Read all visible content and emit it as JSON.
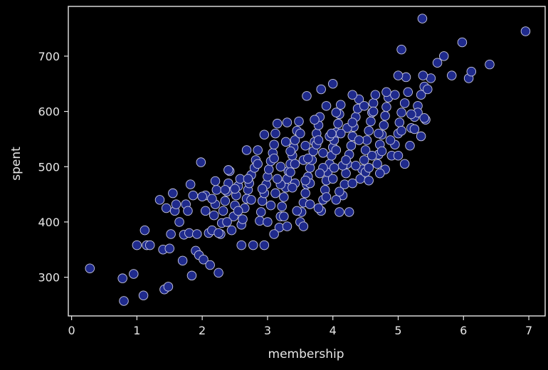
{
  "chart_data": {
    "type": "scatter",
    "xlabel": "membership",
    "ylabel": "spent",
    "xlim": [
      -0.05,
      7.25
    ],
    "ylim": [
      230,
      790
    ],
    "xticks": [
      0,
      1,
      2,
      3,
      4,
      5,
      6,
      7
    ],
    "yticks": [
      300,
      400,
      500,
      600,
      700
    ],
    "grid": false,
    "marker_color": "#1f2a8c",
    "marker_edge_color": "#c8c8e0",
    "background": "#000000",
    "points": [
      [
        0.28,
        316
      ],
      [
        0.78,
        298
      ],
      [
        0.8,
        257
      ],
      [
        0.95,
        306
      ],
      [
        1.0,
        358
      ],
      [
        1.1,
        267
      ],
      [
        1.12,
        385
      ],
      [
        1.15,
        358
      ],
      [
        1.2,
        358
      ],
      [
        1.35,
        440
      ],
      [
        1.4,
        350
      ],
      [
        1.42,
        278
      ],
      [
        1.45,
        425
      ],
      [
        1.48,
        283
      ],
      [
        1.5,
        352
      ],
      [
        1.52,
        378
      ],
      [
        1.55,
        452
      ],
      [
        1.58,
        420
      ],
      [
        1.6,
        432
      ],
      [
        1.65,
        400
      ],
      [
        1.7,
        330
      ],
      [
        1.72,
        377
      ],
      [
        1.75,
        432
      ],
      [
        1.78,
        420
      ],
      [
        1.8,
        380
      ],
      [
        1.82,
        468
      ],
      [
        1.84,
        303
      ],
      [
        1.86,
        448
      ],
      [
        1.9,
        348
      ],
      [
        1.92,
        378
      ],
      [
        1.95,
        340
      ],
      [
        1.98,
        508
      ],
      [
        2.02,
        332
      ],
      [
        2.05,
        448
      ],
      [
        2.1,
        380
      ],
      [
        2.12,
        322
      ],
      [
        2.15,
        385
      ],
      [
        2.18,
        412
      ],
      [
        2.2,
        432
      ],
      [
        2.22,
        458
      ],
      [
        2.25,
        308
      ],
      [
        2.28,
        378
      ],
      [
        2.3,
        398
      ],
      [
        2.32,
        420
      ],
      [
        2.35,
        438
      ],
      [
        2.38,
        455
      ],
      [
        2.4,
        470
      ],
      [
        2.42,
        492
      ],
      [
        2.45,
        385
      ],
      [
        2.48,
        410
      ],
      [
        2.5,
        430
      ],
      [
        2.52,
        448
      ],
      [
        2.55,
        465
      ],
      [
        2.58,
        478
      ],
      [
        2.6,
        395
      ],
      [
        2.62,
        405
      ],
      [
        2.65,
        425
      ],
      [
        2.68,
        442
      ],
      [
        2.7,
        458
      ],
      [
        2.72,
        470
      ],
      [
        2.75,
        485
      ],
      [
        2.78,
        358
      ],
      [
        2.8,
        498
      ],
      [
        2.82,
        512
      ],
      [
        2.85,
        530
      ],
      [
        2.88,
        402
      ],
      [
        2.9,
        418
      ],
      [
        2.92,
        438
      ],
      [
        2.95,
        452
      ],
      [
        2.98,
        468
      ],
      [
        3.0,
        482
      ],
      [
        3.02,
        495
      ],
      [
        3.05,
        510
      ],
      [
        3.08,
        525
      ],
      [
        3.1,
        540
      ],
      [
        3.12,
        560
      ],
      [
        3.15,
        578
      ],
      [
        3.18,
        390
      ],
      [
        3.2,
        410
      ],
      [
        3.22,
        428
      ],
      [
        3.25,
        445
      ],
      [
        3.28,
        462
      ],
      [
        3.3,
        478
      ],
      [
        3.32,
        492
      ],
      [
        3.35,
        505
      ],
      [
        3.38,
        520
      ],
      [
        3.4,
        535
      ],
      [
        3.42,
        548
      ],
      [
        3.45,
        565
      ],
      [
        3.48,
        582
      ],
      [
        3.5,
        400
      ],
      [
        3.52,
        418
      ],
      [
        3.55,
        435
      ],
      [
        3.58,
        452
      ],
      [
        3.6,
        468
      ],
      [
        3.62,
        482
      ],
      [
        3.65,
        498
      ],
      [
        3.68,
        512
      ],
      [
        3.7,
        528
      ],
      [
        3.72,
        545
      ],
      [
        3.75,
        560
      ],
      [
        3.78,
        575
      ],
      [
        3.8,
        590
      ],
      [
        3.82,
        420
      ],
      [
        3.85,
        440
      ],
      [
        3.88,
        458
      ],
      [
        3.9,
        475
      ],
      [
        3.92,
        490
      ],
      [
        3.95,
        505
      ],
      [
        3.98,
        520
      ],
      [
        4.0,
        535
      ],
      [
        4.02,
        548
      ],
      [
        4.05,
        562
      ],
      [
        4.08,
        578
      ],
      [
        4.1,
        595
      ],
      [
        4.12,
        612
      ],
      [
        4.15,
        448
      ],
      [
        4.18,
        468
      ],
      [
        4.2,
        488
      ],
      [
        4.22,
        505
      ],
      [
        4.25,
        522
      ],
      [
        4.28,
        538
      ],
      [
        4.3,
        555
      ],
      [
        4.32,
        572
      ],
      [
        4.35,
        590
      ],
      [
        4.38,
        605
      ],
      [
        4.4,
        622
      ],
      [
        4.42,
        478
      ],
      [
        4.45,
        495
      ],
      [
        4.48,
        512
      ],
      [
        4.5,
        530
      ],
      [
        4.52,
        548
      ],
      [
        4.55,
        565
      ],
      [
        4.58,
        582
      ],
      [
        4.6,
        598
      ],
      [
        4.62,
        615
      ],
      [
        4.65,
        630
      ],
      [
        4.68,
        505
      ],
      [
        4.7,
        522
      ],
      [
        4.72,
        540
      ],
      [
        4.75,
        558
      ],
      [
        4.78,
        575
      ],
      [
        4.8,
        592
      ],
      [
        4.82,
        608
      ],
      [
        4.85,
        625
      ],
      [
        4.9,
        520
      ],
      [
        4.95,
        540
      ],
      [
        5.0,
        560
      ],
      [
        5.02,
        580
      ],
      [
        5.05,
        598
      ],
      [
        5.1,
        615
      ],
      [
        5.15,
        635
      ],
      [
        5.2,
        570
      ],
      [
        5.25,
        590
      ],
      [
        5.3,
        610
      ],
      [
        5.35,
        630
      ],
      [
        5.4,
        645
      ],
      [
        5.5,
        660
      ],
      [
        5.6,
        688
      ],
      [
        5.7,
        700
      ],
      [
        5.82,
        665
      ],
      [
        5.98,
        725
      ],
      [
        6.08,
        660
      ],
      [
        6.12,
        672
      ],
      [
        6.4,
        685
      ],
      [
        6.95,
        745
      ],
      [
        5.37,
        768
      ],
      [
        5.05,
        712
      ],
      [
        4.3,
        630
      ],
      [
        4.0,
        650
      ],
      [
        3.82,
        640
      ],
      [
        3.6,
        628
      ],
      [
        3.3,
        580
      ],
      [
        2.95,
        558
      ],
      [
        2.68,
        530
      ],
      [
        2.4,
        494
      ],
      [
        2.2,
        474
      ],
      [
        2.0,
        446
      ],
      [
        2.25,
        380
      ],
      [
        2.6,
        358
      ],
      [
        2.95,
        358
      ],
      [
        3.1,
        378
      ],
      [
        3.3,
        392
      ],
      [
        3.55,
        392
      ],
      [
        3.78,
        425
      ],
      [
        4.1,
        418
      ],
      [
        4.25,
        418
      ],
      [
        4.05,
        440
      ],
      [
        4.5,
        490
      ],
      [
        4.8,
        495
      ],
      [
        5.1,
        505
      ],
      [
        5.18,
        538
      ],
      [
        5.35,
        555
      ],
      [
        5.42,
        585
      ],
      [
        5.3,
        598
      ],
      [
        5.45,
        640
      ],
      [
        5.2,
        595
      ],
      [
        5.0,
        520
      ],
      [
        4.75,
        528
      ],
      [
        4.6,
        520
      ],
      [
        4.4,
        548
      ],
      [
        4.22,
        570
      ],
      [
        4.05,
        598
      ],
      [
        3.9,
        610
      ],
      [
        3.72,
        585
      ],
      [
        3.5,
        560
      ],
      [
        3.28,
        545
      ],
      [
        3.1,
        515
      ],
      [
        2.85,
        505
      ],
      [
        2.7,
        478
      ],
      [
        2.5,
        460
      ],
      [
        2.35,
        458
      ],
      [
        2.15,
        442
      ],
      [
        2.05,
        420
      ],
      [
        3.05,
        430
      ],
      [
        3.2,
        468
      ],
      [
        3.42,
        470
      ],
      [
        3.65,
        470
      ],
      [
        3.85,
        498
      ],
      [
        4.0,
        478
      ],
      [
        4.15,
        502
      ],
      [
        4.35,
        502
      ],
      [
        4.55,
        498
      ],
      [
        4.7,
        560
      ],
      [
        4.88,
        548
      ],
      [
        5.05,
        565
      ],
      [
        5.25,
        568
      ],
      [
        5.4,
        588
      ],
      [
        5.38,
        665
      ],
      [
        5.12,
        662
      ],
      [
        5.0,
        665
      ],
      [
        4.95,
        630
      ],
      [
        4.82,
        635
      ],
      [
        4.62,
        600
      ],
      [
        4.48,
        610
      ],
      [
        4.3,
        580
      ],
      [
        4.12,
        560
      ],
      [
        3.95,
        555
      ],
      [
        3.75,
        540
      ],
      [
        3.55,
        512
      ],
      [
        3.35,
        490
      ],
      [
        3.15,
        478
      ],
      [
        2.92,
        460
      ],
      [
        2.75,
        440
      ],
      [
        2.55,
        420
      ],
      [
        2.38,
        400
      ],
      [
        3.0,
        400
      ],
      [
        3.25,
        410
      ],
      [
        3.45,
        420
      ],
      [
        3.65,
        432
      ],
      [
        3.9,
        445
      ],
      [
        4.1,
        455
      ],
      [
        4.3,
        470
      ],
      [
        4.55,
        475
      ],
      [
        4.72,
        488
      ],
      [
        3.2,
        500
      ],
      [
        3.42,
        505
      ],
      [
        3.62,
        515
      ],
      [
        3.85,
        525
      ],
      [
        4.05,
        530
      ],
      [
        3.35,
        528
      ],
      [
        3.58,
        538
      ],
      [
        3.78,
        548
      ],
      [
        3.98,
        560
      ],
      [
        3.12,
        452
      ],
      [
        3.38,
        462
      ],
      [
        3.58,
        475
      ],
      [
        3.8,
        488
      ],
      [
        4.02,
        498
      ],
      [
        4.2,
        512
      ]
    ]
  }
}
